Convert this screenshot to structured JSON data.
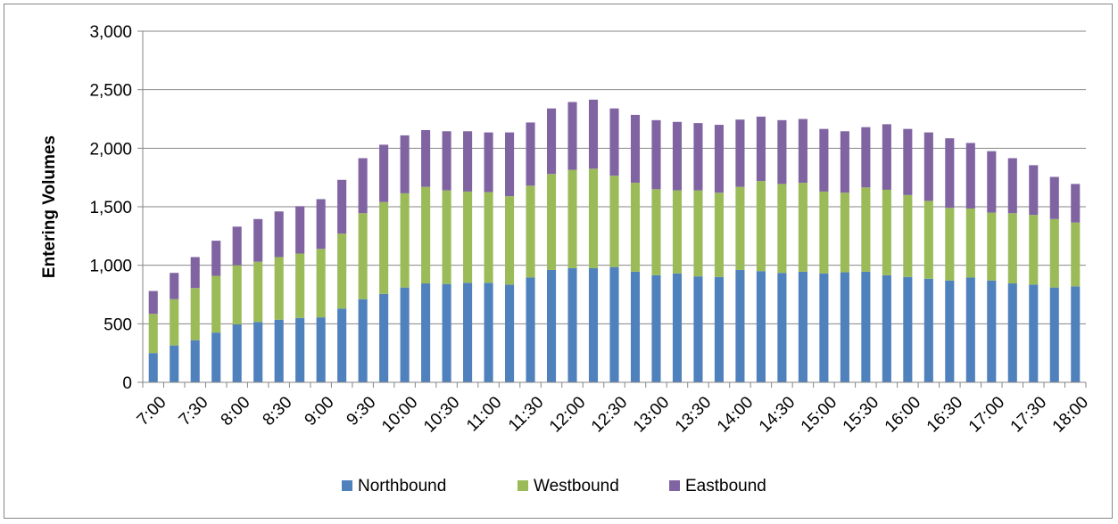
{
  "chart_data": {
    "type": "bar",
    "stacked": true,
    "title": "",
    "xlabel": "",
    "ylabel": "Entering Volumes",
    "ylim": [
      0,
      3000
    ],
    "yticks": [
      "0",
      "500",
      "1,000",
      "1,500",
      "2,000",
      "2,500",
      "3,000"
    ],
    "ytick_values": [
      0,
      500,
      1000,
      1500,
      2000,
      2500,
      3000
    ],
    "grid": true,
    "legend_position": "bottom",
    "categories": [
      "7:00",
      "7:15",
      "7:30",
      "7:45",
      "8:00",
      "8:15",
      "8:30",
      "8:45",
      "9:00",
      "9:15",
      "9:30",
      "9:45",
      "10:00",
      "10:15",
      "10:30",
      "10:45",
      "11:00",
      "11:15",
      "11:30",
      "11:45",
      "12:00",
      "12:15",
      "12:30",
      "12:45",
      "13:00",
      "13:15",
      "13:30",
      "13:45",
      "14:00",
      "14:15",
      "14:30",
      "14:45",
      "15:00",
      "15:15",
      "15:30",
      "15:45",
      "16:00",
      "16:15",
      "16:30",
      "16:45",
      "17:00",
      "17:15",
      "17:30",
      "17:45",
      "18:00"
    ],
    "xtick_labels": [
      "7:00",
      "",
      "7:30",
      "",
      "8:00",
      "",
      "8:30",
      "",
      "9:00",
      "",
      "9:30",
      "",
      "10:00",
      "",
      "10:30",
      "",
      "11:00",
      "",
      "11:30",
      "",
      "12:00",
      "",
      "12:30",
      "",
      "13:00",
      "",
      "13:30",
      "",
      "14:00",
      "",
      "14:30",
      "",
      "15:00",
      "",
      "15:30",
      "",
      "16:00",
      "",
      "16:30",
      "",
      "17:00",
      "",
      "17:30",
      "",
      "18:00"
    ],
    "series": [
      {
        "name": "Northbound",
        "color": "#4f81bd",
        "values": [
          250,
          315,
          360,
          425,
          495,
          515,
          535,
          550,
          555,
          630,
          710,
          755,
          810,
          845,
          840,
          850,
          850,
          835,
          895,
          960,
          975,
          975,
          985,
          945,
          915,
          930,
          905,
          900,
          960,
          950,
          935,
          945,
          930,
          940,
          945,
          915,
          900,
          885,
          870,
          895,
          870,
          845,
          835,
          810,
          820
        ]
      },
      {
        "name": "Westbound",
        "color": "#9bbb59",
        "values": [
          335,
          395,
          445,
          485,
          505,
          515,
          535,
          550,
          585,
          640,
          735,
          785,
          805,
          825,
          800,
          780,
          775,
          755,
          785,
          820,
          840,
          850,
          780,
          760,
          735,
          710,
          735,
          720,
          710,
          770,
          760,
          760,
          700,
          680,
          720,
          730,
          700,
          665,
          620,
          590,
          580,
          600,
          595,
          585,
          545
        ]
      },
      {
        "name": "Eastbound",
        "color": "#8064a2",
        "values": [
          195,
          225,
          265,
          300,
          330,
          365,
          390,
          405,
          425,
          460,
          470,
          490,
          495,
          485,
          505,
          515,
          510,
          545,
          540,
          560,
          580,
          590,
          575,
          580,
          590,
          585,
          575,
          580,
          575,
          550,
          545,
          545,
          535,
          525,
          515,
          560,
          565,
          585,
          595,
          560,
          525,
          470,
          425,
          360,
          330
        ]
      }
    ]
  }
}
